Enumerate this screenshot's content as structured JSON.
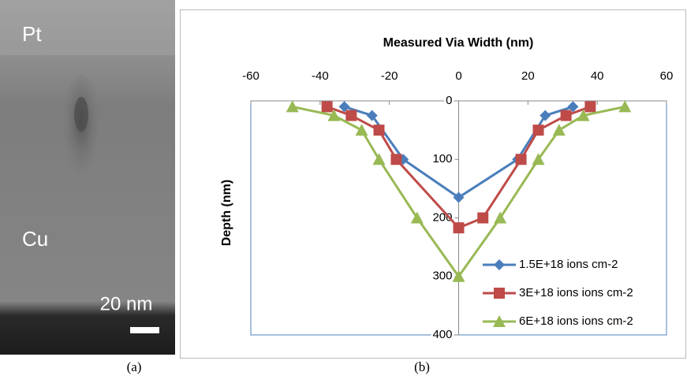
{
  "panel_a": {
    "labels": [
      "Pt",
      "Cu"
    ],
    "scale_bar": "20 nm",
    "caption": "(a)"
  },
  "panel_b_caption": "(b)",
  "chart_data": {
    "type": "line",
    "title": "Measured Via Width (nm)",
    "y_label": "Depth (nm)",
    "xlim": [
      -60,
      60
    ],
    "xticks": [
      -60,
      -40,
      -20,
      0,
      20,
      40,
      60
    ],
    "x_axis_position": "top",
    "ylim": [
      0,
      400
    ],
    "yticks": [
      0,
      100,
      200,
      300,
      400
    ],
    "y_inverted": true,
    "legend": "lower right",
    "frame_color": "#4f81bd",
    "series": [
      {
        "name": "1.5E+18 ions cm-2",
        "color": "#4a7ebb",
        "marker": "diamond",
        "x": [
          -33,
          -25,
          -16,
          0,
          17,
          25,
          33
        ],
        "values": [
          10,
          25,
          100,
          165,
          100,
          25,
          10
        ]
      },
      {
        "name": "3E+18 ions  ions cm-2",
        "color": "#be4b48",
        "marker": "square",
        "x": [
          -38,
          -31,
          -23,
          -18,
          0,
          7,
          18,
          23,
          31,
          38
        ],
        "values": [
          10,
          25,
          50,
          100,
          217,
          200,
          100,
          50,
          25,
          10
        ]
      },
      {
        "name": "6E+18 ions ions cm-2",
        "color": "#98b954",
        "marker": "triangle",
        "x": [
          -48,
          -36,
          -28,
          -23,
          -12,
          0,
          12,
          23,
          29,
          36,
          48
        ],
        "values": [
          10,
          25,
          50,
          100,
          200,
          300,
          200,
          100,
          50,
          25,
          10
        ]
      }
    ]
  }
}
